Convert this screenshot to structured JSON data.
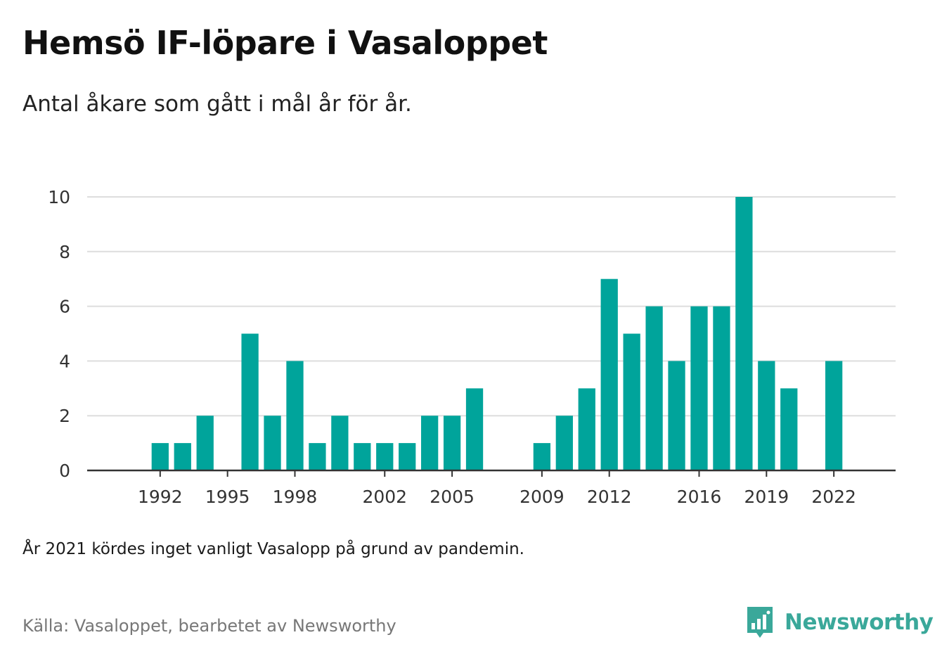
{
  "title": "Hemsö IF-löpare i Vasaloppet",
  "subtitle": "Antal åkare som gått i mål år för år.",
  "note": "År 2021 kördes inget vanligt Vasalopp på grund av pandemin.",
  "source": "Källa: Vasaloppet, bearbetet av Newsworthy",
  "brand": {
    "name": "Newsworthy",
    "icon": "newsworthy-logo-icon",
    "color": "#3aa89a"
  },
  "colors": {
    "bar": "#00a49b",
    "grid": "#dddddd",
    "axis": "#333333",
    "tick_text": "#333333"
  },
  "chart_data": {
    "type": "bar",
    "title": "Hemsö IF-löpare i Vasaloppet",
    "subtitle": "Antal åkare som gått i mål år för år.",
    "xlabel": "",
    "ylabel": "",
    "ylim": [
      0,
      10
    ],
    "yticks": [
      0,
      2,
      4,
      6,
      8,
      10
    ],
    "xticks": [
      1992,
      1995,
      1998,
      2002,
      2005,
      2009,
      2012,
      2016,
      2019,
      2022
    ],
    "xlim": [
      1988.75,
      2024.75
    ],
    "grid": true,
    "legend": "none",
    "categories": [
      1992,
      1993,
      1994,
      1995,
      1996,
      1997,
      1998,
      1999,
      2000,
      2001,
      2002,
      2003,
      2004,
      2005,
      2006,
      2007,
      2008,
      2009,
      2010,
      2011,
      2012,
      2013,
      2014,
      2015,
      2016,
      2017,
      2018,
      2019,
      2020,
      2021,
      2022
    ],
    "values": [
      1,
      1,
      2,
      0,
      5,
      2,
      4,
      1,
      2,
      1,
      1,
      1,
      2,
      2,
      3,
      0,
      0,
      1,
      2,
      3,
      7,
      5,
      6,
      4,
      6,
      6,
      10,
      4,
      3,
      null,
      4
    ]
  }
}
